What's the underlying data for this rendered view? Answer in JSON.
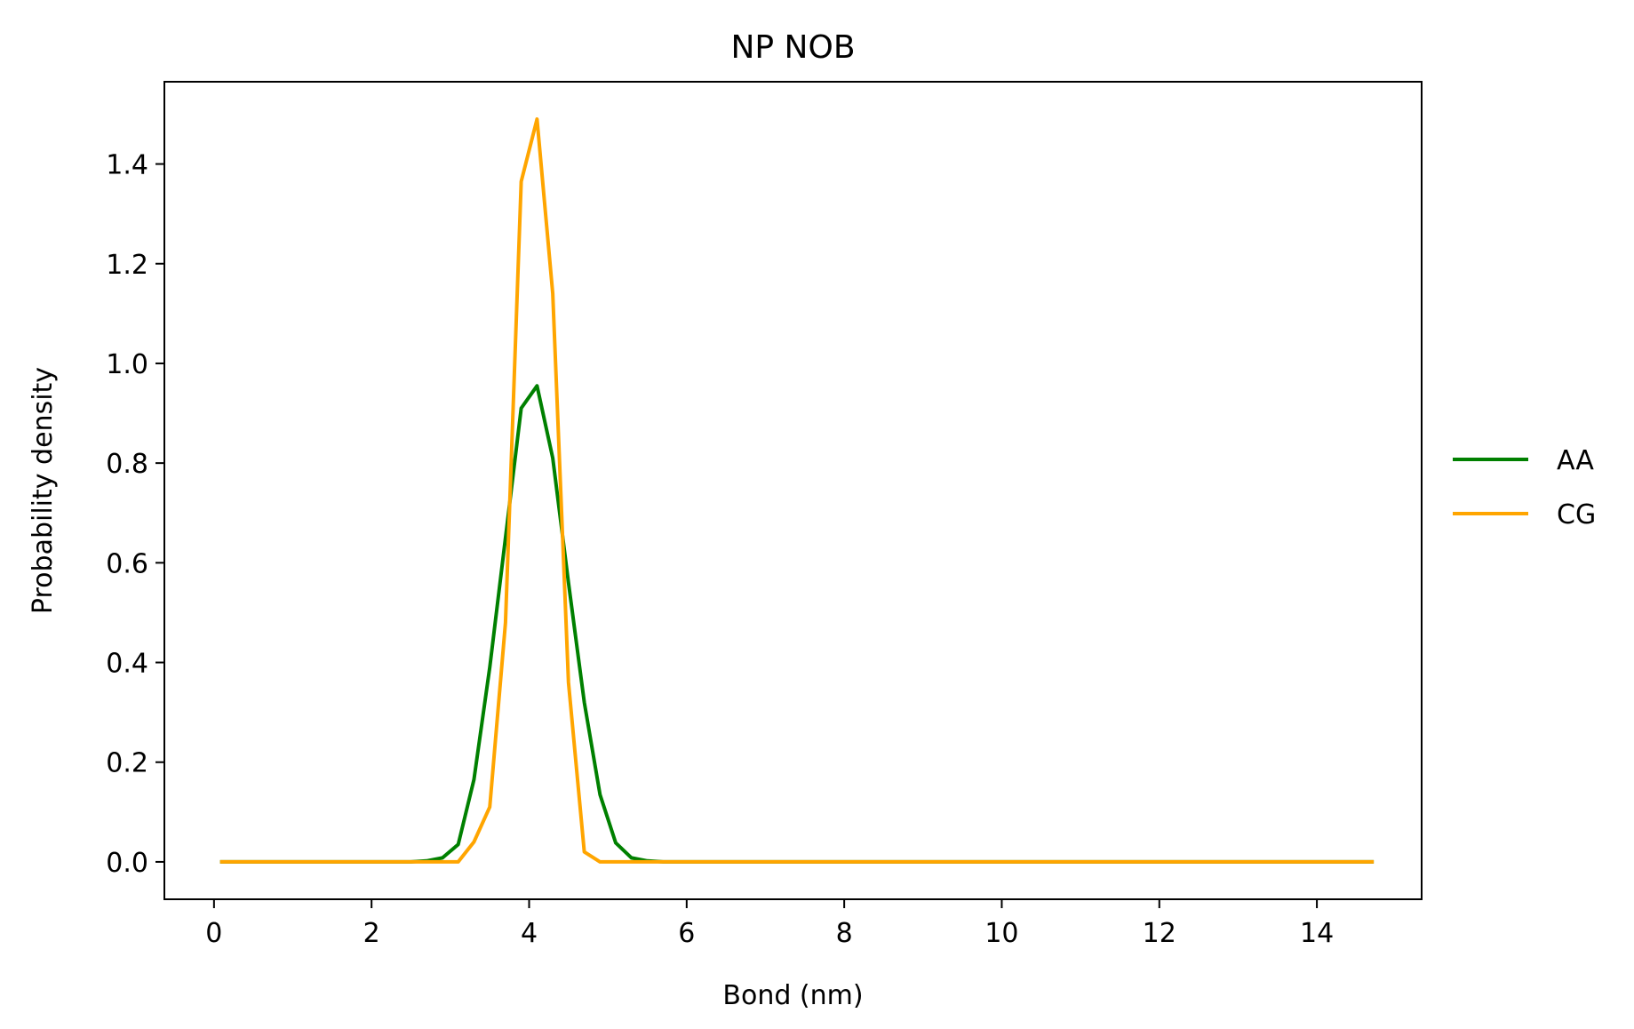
{
  "chart_data": {
    "type": "line",
    "title": "NP NOB",
    "xlabel": "Bond (nm)",
    "ylabel": "Probability density",
    "xlim": [
      -0.63,
      15.33
    ],
    "ylim": [
      -0.075,
      1.565
    ],
    "xticks": [
      0,
      2,
      4,
      6,
      8,
      10,
      12,
      14
    ],
    "xtick_labels": [
      "0",
      "2",
      "4",
      "6",
      "8",
      "10",
      "12",
      "14"
    ],
    "yticks": [
      0.0,
      0.2,
      0.4,
      0.6,
      0.8,
      1.0,
      1.2,
      1.4
    ],
    "ytick_labels": [
      "0.0",
      "0.2",
      "0.4",
      "0.6",
      "0.8",
      "1.0",
      "1.2",
      "1.4"
    ],
    "grid": false,
    "legend_position": "center-right-outside",
    "series": [
      {
        "name": "AA",
        "color": "#008000",
        "x": [
          0.1,
          2.5,
          2.7,
          2.9,
          3.1,
          3.3,
          3.5,
          3.7,
          3.9,
          4.1,
          4.3,
          4.5,
          4.7,
          4.9,
          5.1,
          5.3,
          5.5,
          5.7,
          6.0,
          14.7
        ],
        "y": [
          0.0,
          0.0,
          0.002,
          0.008,
          0.035,
          0.165,
          0.39,
          0.65,
          0.91,
          0.955,
          0.81,
          0.56,
          0.32,
          0.135,
          0.038,
          0.008,
          0.002,
          0.0,
          0.0,
          0.0
        ]
      },
      {
        "name": "CG",
        "color": "#FFA500",
        "x": [
          0.1,
          3.1,
          3.3,
          3.5,
          3.7,
          3.9,
          4.1,
          4.3,
          4.5,
          4.7,
          4.9,
          5.1,
          14.7
        ],
        "y": [
          0.0,
          0.0,
          0.04,
          0.11,
          0.48,
          1.365,
          1.49,
          1.14,
          0.36,
          0.02,
          0.0,
          0.0,
          0.0
        ]
      }
    ]
  }
}
